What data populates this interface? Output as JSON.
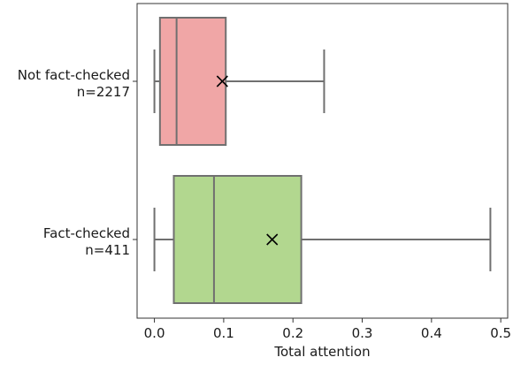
{
  "chart_data": {
    "type": "box",
    "orientation": "horizontal",
    "xlabel": "Total attention",
    "ylabel": "",
    "xlim": [
      -0.025,
      0.51
    ],
    "xticks": [
      0.0,
      0.1,
      0.2,
      0.3,
      0.4,
      0.5
    ],
    "xtick_labels": [
      "0.0",
      "0.1",
      "0.2",
      "0.3",
      "0.4",
      "0.5"
    ],
    "grid": false,
    "categories": [
      {
        "label_line1": "Not fact-checked",
        "label_line2": "n=2217",
        "color": "#f0a6a6",
        "whisker_low": 0.0,
        "q1": 0.008,
        "median": 0.032,
        "q3": 0.103,
        "whisker_high": 0.245,
        "mean": 0.098
      },
      {
        "label_line1": "Fact-checked",
        "label_line2": "n=411",
        "color": "#b2d78f",
        "whisker_low": 0.0,
        "q1": 0.028,
        "median": 0.086,
        "q3": 0.212,
        "whisker_high": 0.485,
        "mean": 0.17
      }
    ],
    "line_color": "#707070",
    "mean_marker": "x"
  }
}
